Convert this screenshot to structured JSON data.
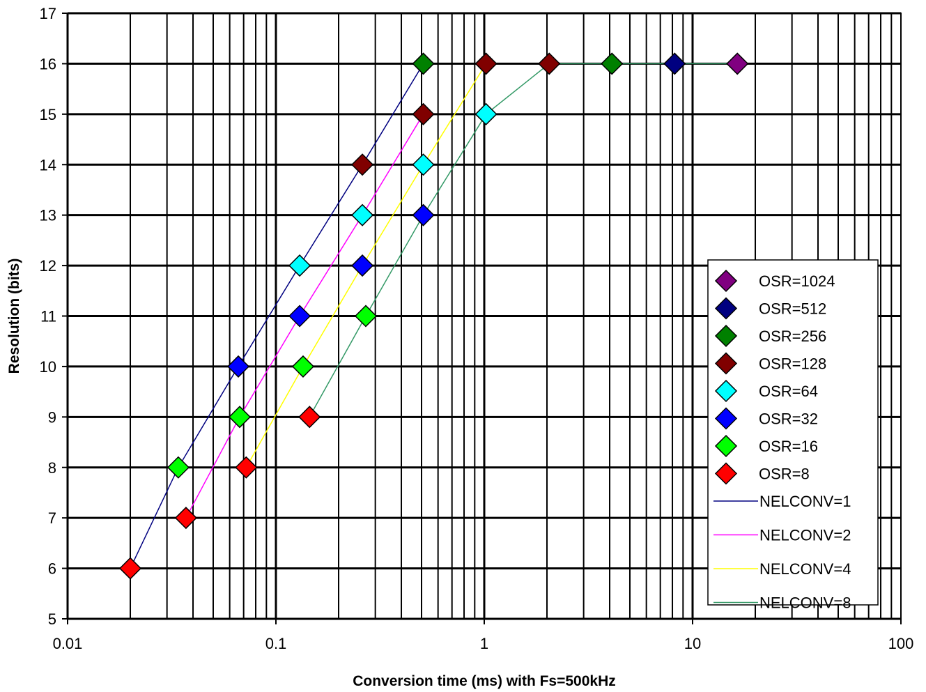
{
  "chart_data": {
    "type": "scatter",
    "title": "",
    "xlabel": "Conversion time (ms) with Fs=500kHz",
    "ylabel": "Resolution (bits)",
    "xscale": "log",
    "xlim": [
      0.01,
      100
    ],
    "ylim": [
      5,
      17
    ],
    "grid": true,
    "legend_position": "right",
    "x_ticks": [
      {
        "value": 0.01,
        "label": "0.01"
      },
      {
        "value": 0.1,
        "label": "0.1"
      },
      {
        "value": 1,
        "label": "1"
      },
      {
        "value": 10,
        "label": "10"
      },
      {
        "value": 100,
        "label": "100"
      }
    ],
    "y_ticks": [
      5,
      6,
      7,
      8,
      9,
      10,
      11,
      12,
      13,
      14,
      15,
      16,
      17
    ],
    "marker_series": [
      {
        "name": "OSR=1024",
        "color": "#800080",
        "points": [
          {
            "x": 16.4,
            "y": 16
          }
        ]
      },
      {
        "name": "OSR=512",
        "color": "#000080",
        "points": [
          {
            "x": 8.2,
            "y": 16
          }
        ]
      },
      {
        "name": "OSR=256",
        "color": "#008000",
        "points": [
          {
            "x": 0.51,
            "y": 16
          },
          {
            "x": 4.1,
            "y": 16
          }
        ]
      },
      {
        "name": "OSR=128",
        "color": "#800000",
        "points": [
          {
            "x": 0.26,
            "y": 14
          },
          {
            "x": 0.51,
            "y": 15
          },
          {
            "x": 1.02,
            "y": 16
          },
          {
            "x": 2.05,
            "y": 16
          }
        ]
      },
      {
        "name": "OSR=64",
        "color": "#00FFFF",
        "points": [
          {
            "x": 0.13,
            "y": 12
          },
          {
            "x": 0.26,
            "y": 13
          },
          {
            "x": 0.51,
            "y": 14
          },
          {
            "x": 1.02,
            "y": 15
          }
        ]
      },
      {
        "name": "OSR=32",
        "color": "#0000FF",
        "points": [
          {
            "x": 0.066,
            "y": 10
          },
          {
            "x": 0.13,
            "y": 11
          },
          {
            "x": 0.26,
            "y": 12
          },
          {
            "x": 0.51,
            "y": 13
          }
        ]
      },
      {
        "name": "OSR=16",
        "color": "#00FF00",
        "points": [
          {
            "x": 0.034,
            "y": 8
          },
          {
            "x": 0.067,
            "y": 9
          },
          {
            "x": 0.135,
            "y": 10
          },
          {
            "x": 0.27,
            "y": 11
          }
        ]
      },
      {
        "name": "OSR=8",
        "color": "#FF0000",
        "points": [
          {
            "x": 0.02,
            "y": 6
          },
          {
            "x": 0.037,
            "y": 7
          },
          {
            "x": 0.072,
            "y": 8
          },
          {
            "x": 0.145,
            "y": 9
          }
        ]
      }
    ],
    "line_series": [
      {
        "name": "NELCONV=1",
        "color": "#000080",
        "points": [
          {
            "x": 0.02,
            "y": 6
          },
          {
            "x": 0.034,
            "y": 8
          },
          {
            "x": 0.066,
            "y": 10
          },
          {
            "x": 0.13,
            "y": 12
          },
          {
            "x": 0.26,
            "y": 14
          },
          {
            "x": 0.51,
            "y": 16
          }
        ]
      },
      {
        "name": "NELCONV=2",
        "color": "#FF00FF",
        "points": [
          {
            "x": 0.037,
            "y": 7
          },
          {
            "x": 0.067,
            "y": 9
          },
          {
            "x": 0.13,
            "y": 11
          },
          {
            "x": 0.26,
            "y": 13
          },
          {
            "x": 0.51,
            "y": 15
          }
        ]
      },
      {
        "name": "NELCONV=4",
        "color": "#FFFF00",
        "points": [
          {
            "x": 0.072,
            "y": 8
          },
          {
            "x": 0.135,
            "y": 10
          },
          {
            "x": 0.26,
            "y": 12
          },
          {
            "x": 0.51,
            "y": 14
          },
          {
            "x": 1.02,
            "y": 16
          }
        ]
      },
      {
        "name": "NELCONV=8",
        "color": "#339966",
        "points": [
          {
            "x": 0.145,
            "y": 9
          },
          {
            "x": 0.27,
            "y": 11
          },
          {
            "x": 0.51,
            "y": 13
          },
          {
            "x": 1.02,
            "y": 15
          },
          {
            "x": 2.05,
            "y": 16
          },
          {
            "x": 4.1,
            "y": 16
          },
          {
            "x": 8.2,
            "y": 16
          },
          {
            "x": 16.4,
            "y": 16
          }
        ]
      }
    ]
  }
}
